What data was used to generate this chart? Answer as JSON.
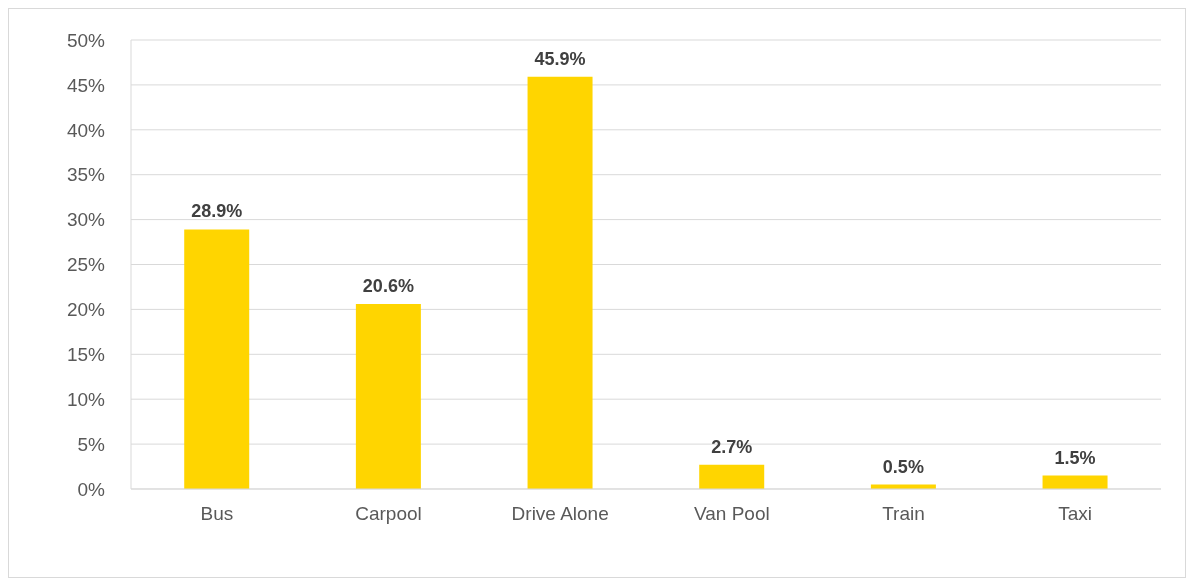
{
  "chart_data": {
    "type": "bar",
    "categories": [
      "Bus",
      "Carpool",
      "Drive Alone",
      "Van Pool",
      "Train",
      "Taxi"
    ],
    "values": [
      28.9,
      20.6,
      45.9,
      2.7,
      0.5,
      1.5
    ],
    "value_labels": [
      "28.9%",
      "20.6%",
      "45.9%",
      "2.7%",
      "0.5%",
      "1.5%"
    ],
    "color": "#ffd500",
    "ylim": [
      0,
      50
    ],
    "yticks": [
      {
        "value": 0,
        "label": "0%"
      },
      {
        "value": 5,
        "label": "5%"
      },
      {
        "value": 10,
        "label": "10%"
      },
      {
        "value": 15,
        "label": "15%"
      },
      {
        "value": 20,
        "label": "20%"
      },
      {
        "value": 25,
        "label": "25%"
      },
      {
        "value": 30,
        "label": "30%"
      },
      {
        "value": 35,
        "label": "35%"
      },
      {
        "value": 40,
        "label": "40%"
      },
      {
        "value": 45,
        "label": "45%"
      },
      {
        "value": 50,
        "label": "50%"
      }
    ],
    "grid": "y",
    "legend": false
  }
}
